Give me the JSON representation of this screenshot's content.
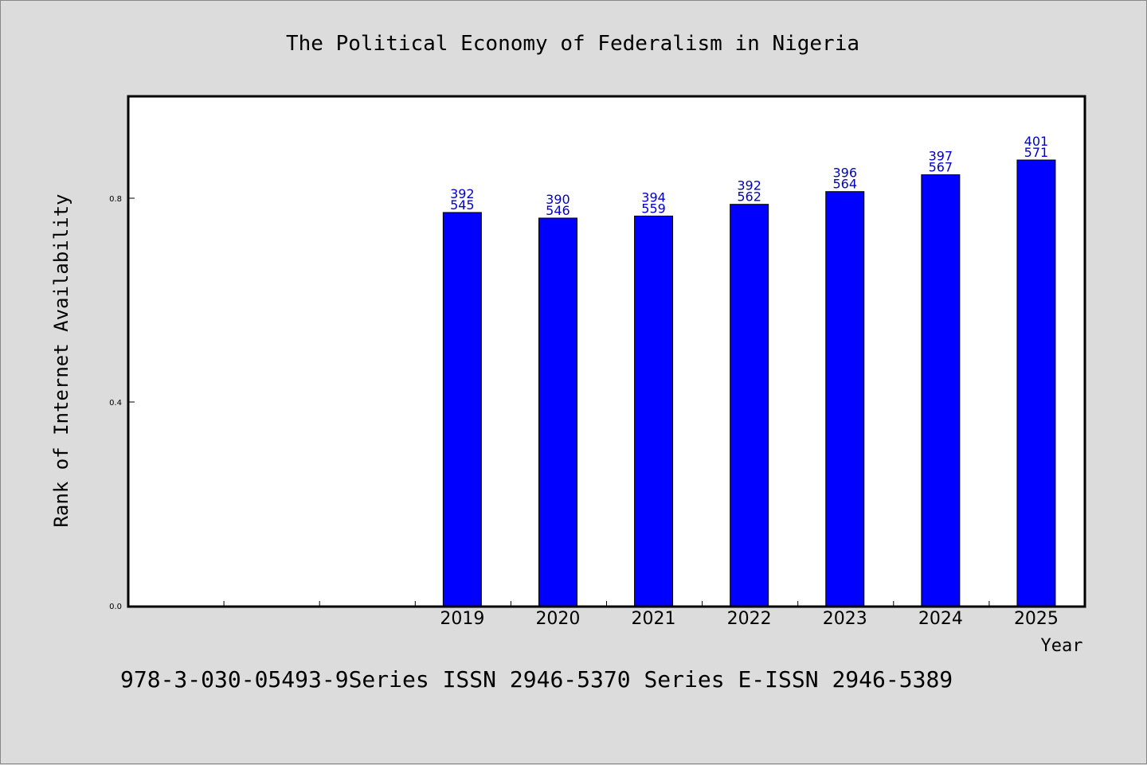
{
  "title": "The Political Economy of Federalism in Nigeria",
  "footer": "978-3-030-05493-9Series ISSN 2946-5370 Series E-ISSN 2946-5389",
  "colors": {
    "background": "#dcdcdc",
    "plot_area": "#ffffff",
    "bar_fill": "#0000ff",
    "data_label": "#0000c8"
  },
  "chart_data": {
    "type": "bar",
    "xlabel": "Year",
    "ylabel": "Rank of Internet Availability",
    "ylim": [
      0,
      1.0
    ],
    "yticks": [
      {
        "value": 0.0,
        "label": "0.0"
      },
      {
        "value": 0.4,
        "label": "0.4"
      },
      {
        "value": 0.8,
        "label": "0.8"
      }
    ],
    "grid": false,
    "slots": 10,
    "categories": [
      "2019",
      "2020",
      "2021",
      "2022",
      "2023",
      "2024",
      "2025"
    ],
    "values": [
      0.772,
      0.761,
      0.765,
      0.788,
      0.813,
      0.846,
      0.875
    ],
    "labels": [
      [
        "392",
        "545"
      ],
      [
        "390",
        "546"
      ],
      [
        "394",
        "559"
      ],
      [
        "392",
        "562"
      ],
      [
        "396",
        "564"
      ],
      [
        "397",
        "567"
      ],
      [
        "401",
        "571"
      ]
    ]
  }
}
